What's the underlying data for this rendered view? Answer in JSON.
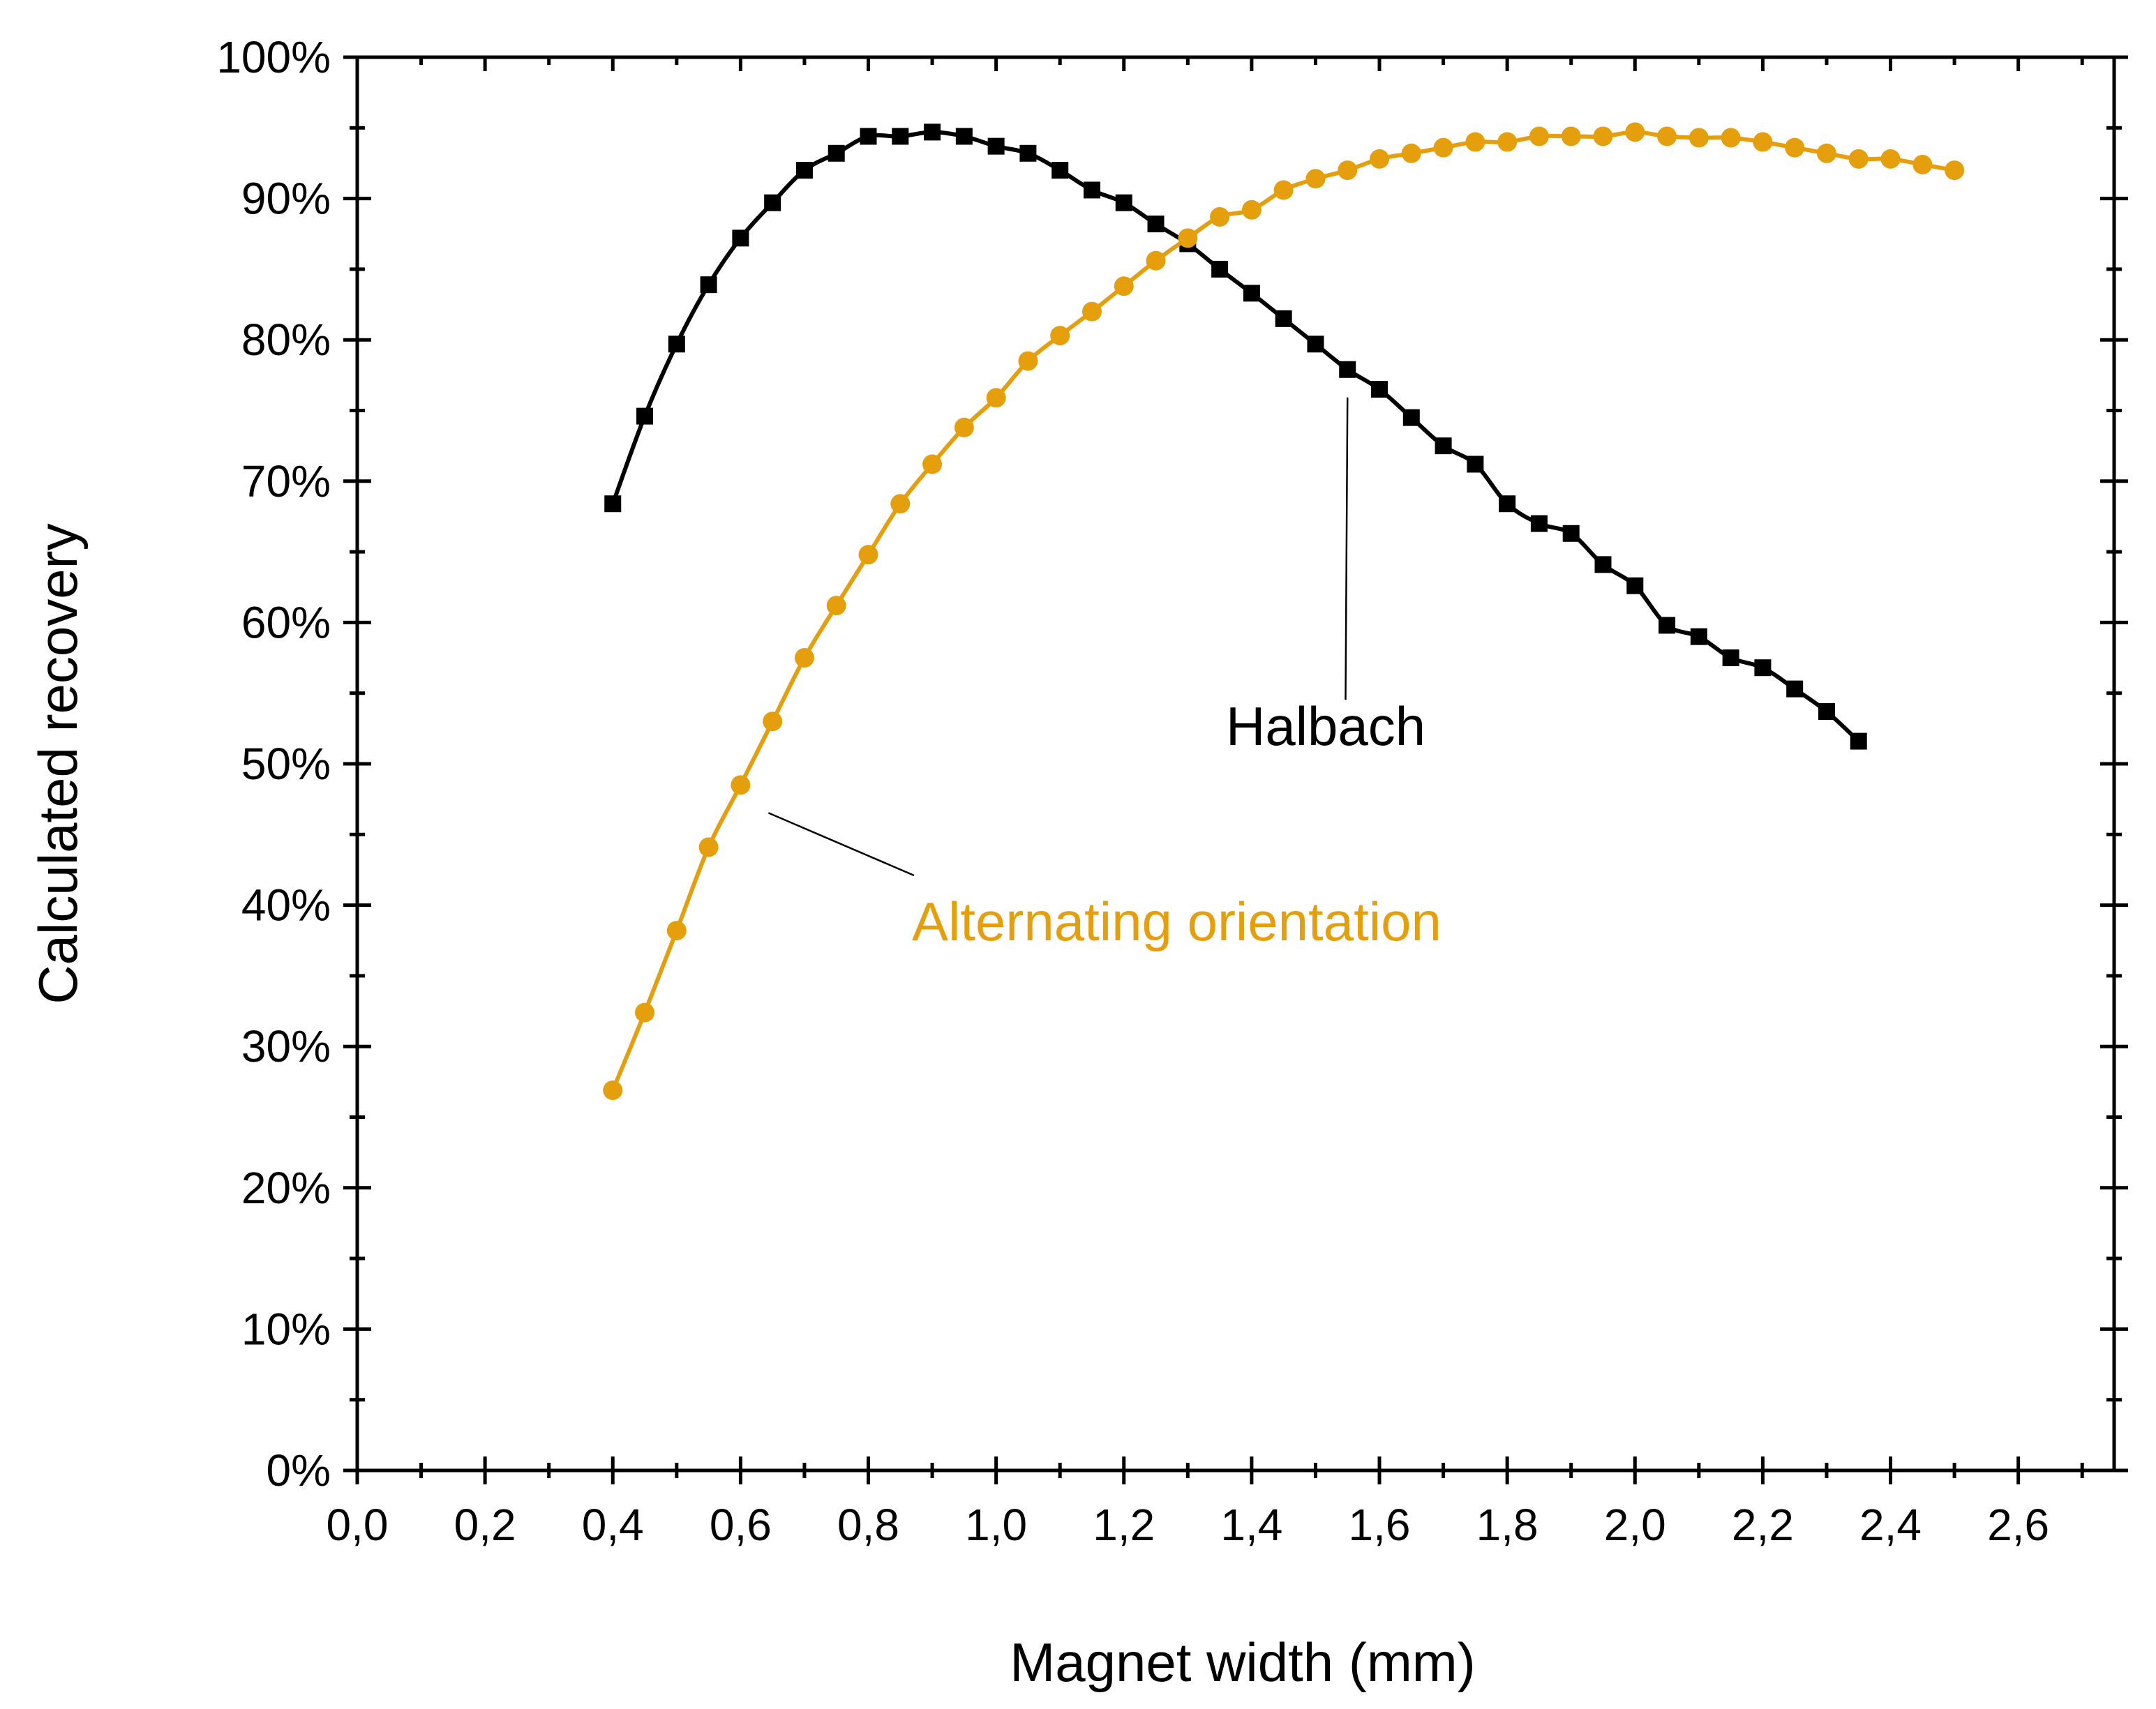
{
  "chart_data": {
    "type": "line",
    "title": "",
    "xlabel": "Magnet width (mm)",
    "ylabel": "Calculated recovery",
    "xlim": [
      0.0,
      2.75
    ],
    "ylim": [
      0,
      100
    ],
    "x_ticks": [
      0.0,
      0.2,
      0.4,
      0.6,
      0.8,
      1.0,
      1.2,
      1.4,
      1.6,
      1.8,
      2.0,
      2.2,
      2.4,
      2.6
    ],
    "x_tick_labels": [
      "0,0",
      "0,2",
      "0,4",
      "0,6",
      "0,8",
      "1,0",
      "1,2",
      "1,4",
      "1,6",
      "1,8",
      "2,0",
      "2,2",
      "2,4",
      "2,6"
    ],
    "y_ticks": [
      0,
      10,
      20,
      30,
      40,
      50,
      60,
      70,
      80,
      90,
      100
    ],
    "y_tick_labels": [
      "0%",
      "10%",
      "20%",
      "30%",
      "40%",
      "50%",
      "60%",
      "70%",
      "80%",
      "90%",
      "100%"
    ],
    "grid": false,
    "series": [
      {
        "name": "Halbach",
        "color": "#000000",
        "marker": "square",
        "x": [
          0.4,
          0.45,
          0.5,
          0.55,
          0.6,
          0.65,
          0.7,
          0.75,
          0.8,
          0.85,
          0.9,
          0.95,
          1.0,
          1.05,
          1.1,
          1.15,
          1.2,
          1.25,
          1.3,
          1.35,
          1.4,
          1.45,
          1.5,
          1.55,
          1.6,
          1.65,
          1.7,
          1.75,
          1.8,
          1.85,
          1.9,
          1.95,
          2.0,
          2.05,
          2.1,
          2.15,
          2.2,
          2.25,
          2.3,
          2.35
        ],
        "values": [
          68.4,
          74.6,
          79.7,
          83.9,
          87.2,
          89.7,
          92.0,
          93.2,
          94.4,
          94.4,
          94.7,
          94.4,
          93.7,
          93.2,
          92.0,
          90.6,
          89.7,
          88.2,
          86.8,
          85.0,
          83.3,
          81.5,
          79.7,
          77.9,
          76.5,
          74.5,
          72.5,
          71.2,
          68.4,
          67.0,
          66.3,
          64.1,
          62.6,
          59.8,
          59.0,
          57.5,
          56.8,
          55.3,
          53.7,
          51.6
        ]
      },
      {
        "name": "Alternating orientation",
        "color": "#E59E0C",
        "marker": "circle",
        "x": [
          0.4,
          0.45,
          0.5,
          0.55,
          0.6,
          0.65,
          0.7,
          0.75,
          0.8,
          0.85,
          0.9,
          0.95,
          1.0,
          1.05,
          1.1,
          1.15,
          1.2,
          1.25,
          1.3,
          1.35,
          1.4,
          1.45,
          1.5,
          1.55,
          1.6,
          1.65,
          1.7,
          1.75,
          1.8,
          1.85,
          1.9,
          1.95,
          2.0,
          2.05,
          2.1,
          2.15,
          2.2,
          2.25,
          2.3,
          2.35,
          2.4,
          2.45,
          2.5
        ],
        "values": [
          26.9,
          32.4,
          38.2,
          44.1,
          48.5,
          53.0,
          57.5,
          61.2,
          64.8,
          68.4,
          71.2,
          73.8,
          75.9,
          78.5,
          80.3,
          82.0,
          83.8,
          85.6,
          87.2,
          88.7,
          89.2,
          90.6,
          91.4,
          92.0,
          92.8,
          93.2,
          93.6,
          94.0,
          94.0,
          94.4,
          94.4,
          94.4,
          94.7,
          94.4,
          94.3,
          94.3,
          94.0,
          93.6,
          93.2,
          92.8,
          92.8,
          92.4,
          92.0
        ]
      }
    ],
    "annotations": [
      {
        "text": "Halbach",
        "series": "Halbach",
        "color": "#000000",
        "points_to_x": 1.55
      },
      {
        "text": "Alternating orientation",
        "series": "Alternating orientation",
        "color": "#E59E0C",
        "points_to_x": 0.6
      }
    ]
  }
}
